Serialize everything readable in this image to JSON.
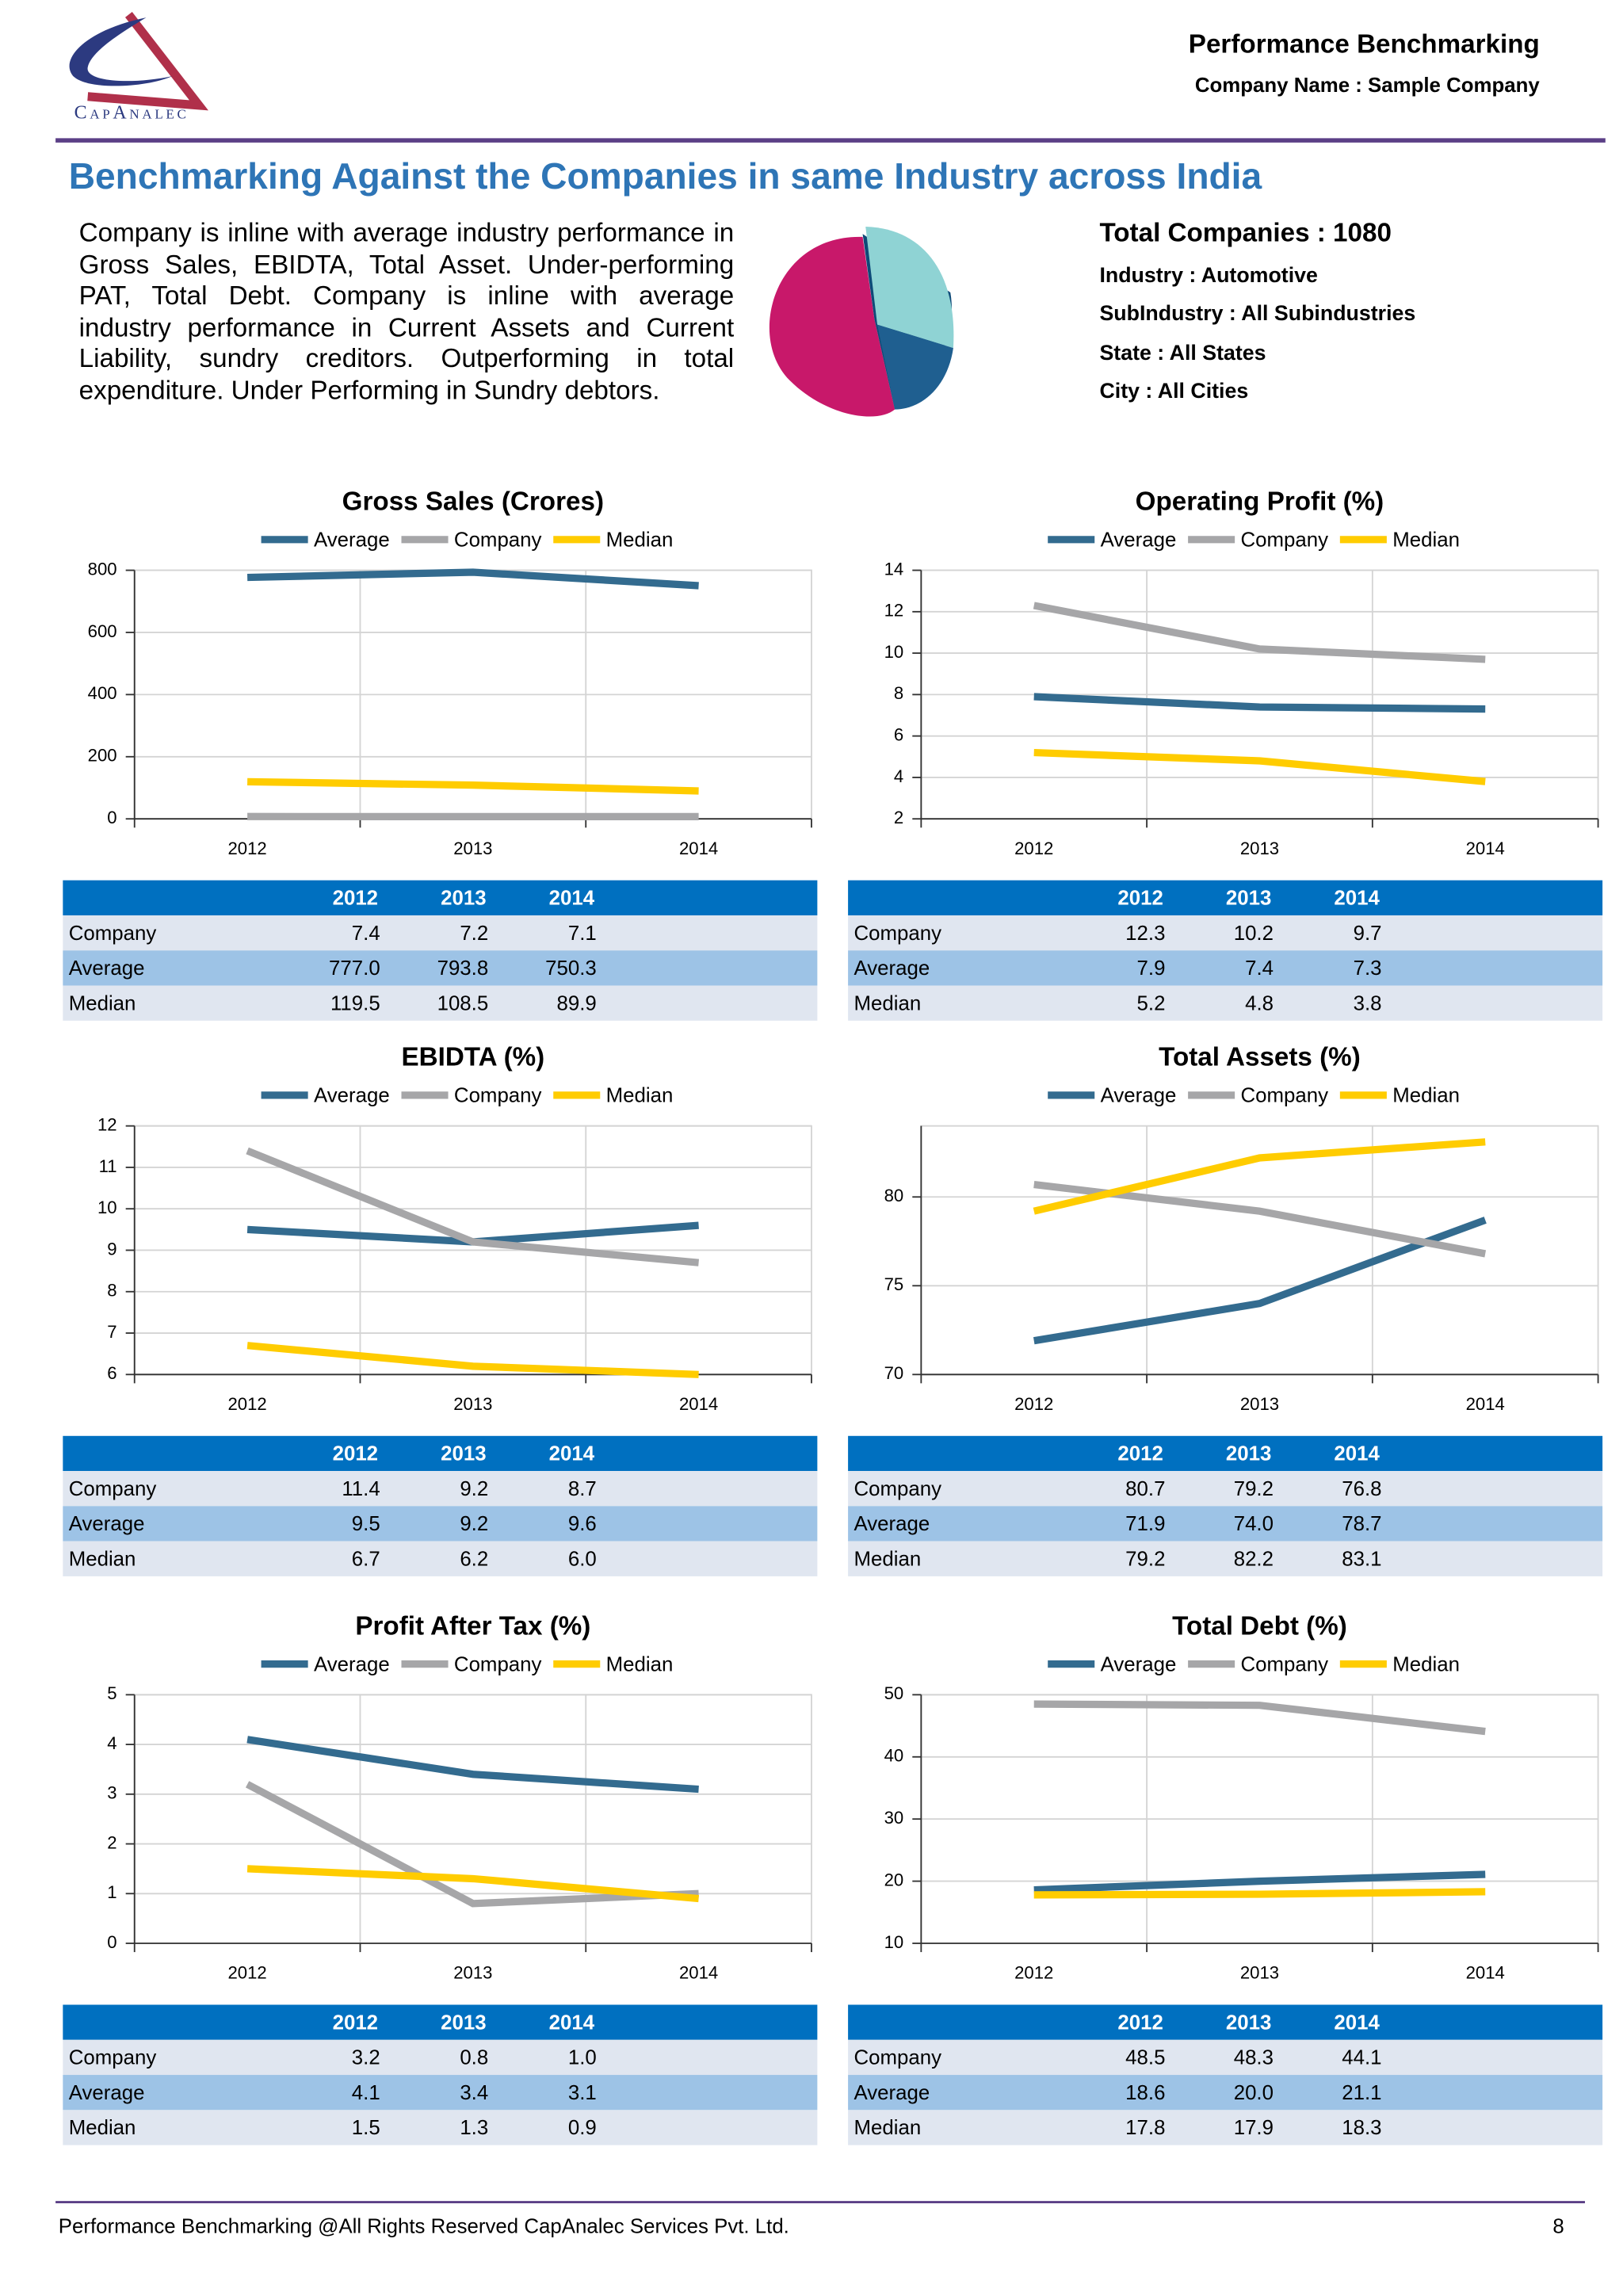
{
  "header": {
    "logo_text": "CapAnalec",
    "title": "Performance Benchmarking",
    "company": "Company Name : Sample Company"
  },
  "heading": "Benchmarking Against the Companies in same Industry across India",
  "summary": "Company is inline with average industry performance in Gross Sales, EBIDTA, Total Asset. Under-performing PAT, Total Debt. Company is inline with average industry performance in Current Assets and Current Liability, sundry creditors. Outperforming in total expenditure.  Under Performing in Sundry debtors.",
  "stats": {
    "total": "Total Companies : 1080",
    "items": [
      "Industry : Automotive",
      "SubIndustry : All Subindustries",
      "State : All States",
      "City : All Cities"
    ]
  },
  "chart_data": [
    {
      "type": "line",
      "title": "Gross Sales (Crores)",
      "categories": [
        "2012",
        "2013",
        "2014"
      ],
      "ylim": [
        0,
        800
      ],
      "yticks": [
        0,
        200,
        400,
        600,
        800
      ],
      "grid": true,
      "series": [
        {
          "name": "Average",
          "color": "#336b8f",
          "values": [
            777,
            793.8,
            750.3
          ],
          "value_labels": [
            "777.0",
            "793.8",
            "750.3"
          ]
        },
        {
          "name": "Company",
          "color": "#a6a6a8",
          "values": [
            7.4,
            7.2,
            7.1
          ],
          "value_labels": [
            "7.4",
            "7.2",
            "7.1"
          ]
        },
        {
          "name": "Median",
          "color": "#ffcc00",
          "values": [
            119.5,
            108.5,
            89.9
          ],
          "value_labels": [
            "119.5",
            "108.5",
            "89.9"
          ]
        }
      ]
    },
    {
      "type": "line",
      "title": "Operating Profit (%)",
      "categories": [
        "2012",
        "2013",
        "2014"
      ],
      "ylim": [
        2,
        14
      ],
      "yticks": [
        2,
        4,
        6,
        8,
        10,
        12,
        14
      ],
      "grid": true,
      "series": [
        {
          "name": "Average",
          "color": "#336b8f",
          "values": [
            7.9,
            7.4,
            7.3
          ],
          "value_labels": [
            "7.9",
            "7.4",
            "7.3"
          ]
        },
        {
          "name": "Company",
          "color": "#a6a6a8",
          "values": [
            12.3,
            10.2,
            9.7
          ],
          "value_labels": [
            "12.3",
            "10.2",
            "9.7"
          ]
        },
        {
          "name": "Median",
          "color": "#ffcc00",
          "values": [
            5.2,
            4.8,
            3.8
          ],
          "value_labels": [
            "5.2",
            "4.8",
            "3.8"
          ]
        }
      ]
    },
    {
      "type": "line",
      "title": "EBIDTA (%)",
      "categories": [
        "2012",
        "2013",
        "2014"
      ],
      "ylim": [
        6,
        12
      ],
      "yticks": [
        6,
        7,
        8,
        9,
        10,
        11,
        12
      ],
      "grid": true,
      "series": [
        {
          "name": "Average",
          "color": "#336b8f",
          "values": [
            9.5,
            9.2,
            9.6
          ],
          "value_labels": [
            "9.5",
            "9.2",
            "9.6"
          ]
        },
        {
          "name": "Company",
          "color": "#a6a6a8",
          "values": [
            11.4,
            9.2,
            8.7
          ],
          "value_labels": [
            "11.4",
            "9.2",
            "8.7"
          ]
        },
        {
          "name": "Median",
          "color": "#ffcc00",
          "values": [
            6.7,
            6.2,
            6.0
          ],
          "value_labels": [
            "6.7",
            "6.2",
            "6.0"
          ]
        }
      ]
    },
    {
      "type": "line",
      "title": "Total Assets (%)",
      "categories": [
        "2012",
        "2013",
        "2014"
      ],
      "ylim": [
        70,
        84
      ],
      "yticks": [
        70,
        75,
        80
      ],
      "grid": true,
      "series": [
        {
          "name": "Average",
          "color": "#336b8f",
          "values": [
            71.9,
            74.0,
            78.7
          ],
          "value_labels": [
            "71.9",
            "74.0",
            "78.7"
          ]
        },
        {
          "name": "Company",
          "color": "#a6a6a8",
          "values": [
            80.7,
            79.2,
            76.8
          ],
          "value_labels": [
            "80.7",
            "79.2",
            "76.8"
          ]
        },
        {
          "name": "Median",
          "color": "#ffcc00",
          "values": [
            79.2,
            82.2,
            83.1
          ],
          "value_labels": [
            "79.2",
            "82.2",
            "83.1"
          ]
        }
      ]
    },
    {
      "type": "line",
      "title": "Profit After Tax (%)",
      "categories": [
        "2012",
        "2013",
        "2014"
      ],
      "ylim": [
        0,
        5
      ],
      "yticks": [
        0,
        1,
        2,
        3,
        4,
        5
      ],
      "grid": true,
      "series": [
        {
          "name": "Average",
          "color": "#336b8f",
          "values": [
            4.1,
            3.4,
            3.1
          ],
          "value_labels": [
            "4.1",
            "3.4",
            "3.1"
          ]
        },
        {
          "name": "Company",
          "color": "#a6a6a8",
          "values": [
            3.2,
            0.8,
            1.0
          ],
          "value_labels": [
            "3.2",
            "0.8",
            "1.0"
          ]
        },
        {
          "name": "Median",
          "color": "#ffcc00",
          "values": [
            1.5,
            1.3,
            0.9
          ],
          "value_labels": [
            "1.5",
            "1.3",
            "0.9"
          ]
        }
      ]
    },
    {
      "type": "line",
      "title": "Total Debt (%)",
      "categories": [
        "2012",
        "2013",
        "2014"
      ],
      "ylim": [
        10,
        50
      ],
      "yticks": [
        10,
        20,
        30,
        40,
        50
      ],
      "grid": true,
      "series": [
        {
          "name": "Average",
          "color": "#336b8f",
          "values": [
            18.6,
            20.0,
            21.1
          ],
          "value_labels": [
            "18.6",
            "20.0",
            "21.1"
          ]
        },
        {
          "name": "Company",
          "color": "#a6a6a8",
          "values": [
            48.5,
            48.3,
            44.1
          ],
          "value_labels": [
            "48.5",
            "48.3",
            "44.1"
          ]
        },
        {
          "name": "Median",
          "color": "#ffcc00",
          "values": [
            17.8,
            17.9,
            18.3
          ],
          "value_labels": [
            "17.8",
            "17.9",
            "18.3"
          ]
        }
      ]
    }
  ],
  "footer": {
    "text": "Performance Benchmarking @All Rights Reserved CapAnalec Services Pvt. Ltd.",
    "page": "8"
  }
}
